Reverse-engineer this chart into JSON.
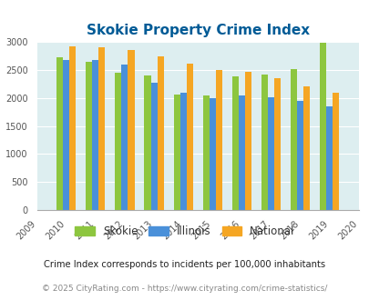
{
  "title": "Skokie Property Crime Index",
  "years": [
    2009,
    2010,
    2011,
    2012,
    2013,
    2014,
    2015,
    2016,
    2017,
    2018,
    2019,
    2020
  ],
  "skokie": [
    null,
    2720,
    2650,
    2450,
    2400,
    2060,
    2050,
    2390,
    2420,
    2510,
    2980,
    null
  ],
  "illinois": [
    null,
    2680,
    2680,
    2590,
    2270,
    2090,
    2000,
    2050,
    2010,
    1940,
    1850,
    null
  ],
  "national": [
    null,
    2930,
    2910,
    2860,
    2740,
    2610,
    2500,
    2470,
    2360,
    2200,
    2090,
    null
  ],
  "skokie_color": "#8dc63f",
  "illinois_color": "#4a90d9",
  "national_color": "#f5a623",
  "ylim": [
    0,
    3000
  ],
  "yticks": [
    0,
    500,
    1000,
    1500,
    2000,
    2500,
    3000
  ],
  "bar_width": 0.22,
  "legend_labels": [
    "Skokie",
    "Illinois",
    "National"
  ],
  "footnote1": "Crime Index corresponds to incidents per 100,000 inhabitants",
  "footnote2": "© 2025 CityRating.com - https://www.cityrating.com/crime-statistics/",
  "title_color": "#005b96",
  "footnote1_color": "#222222",
  "footnote2_color": "#888888",
  "grid_color": "#ffffff",
  "axis_bg": "#ddeef0"
}
